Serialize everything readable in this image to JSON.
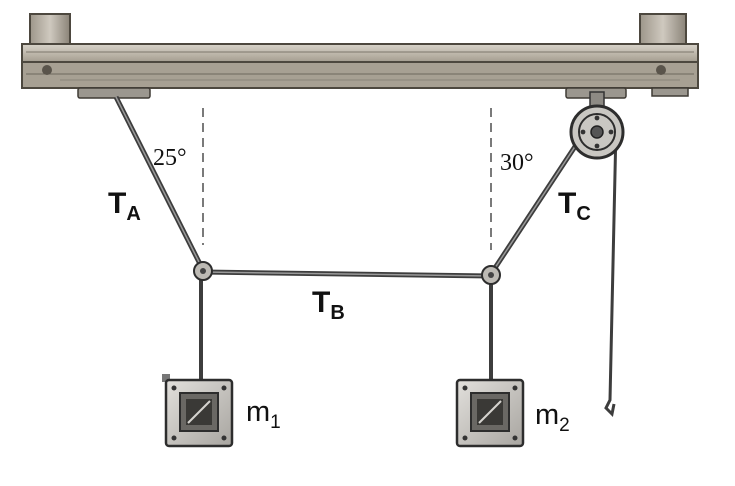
{
  "labels": {
    "tension_a": {
      "main": "T",
      "sub": "A"
    },
    "tension_b": {
      "main": "T",
      "sub": "B"
    },
    "tension_c": {
      "main": "T",
      "sub": "C"
    },
    "mass_1": {
      "main": "m",
      "sub": "1"
    },
    "mass_2": {
      "main": "m",
      "sub": "2"
    },
    "angle_left": "25°",
    "angle_right": "30°"
  },
  "colors": {
    "wood": "#b7b0a3",
    "wood_dark": "#5a544b",
    "rope": "#4a4a4a",
    "metal": "#8c8c8c"
  }
}
